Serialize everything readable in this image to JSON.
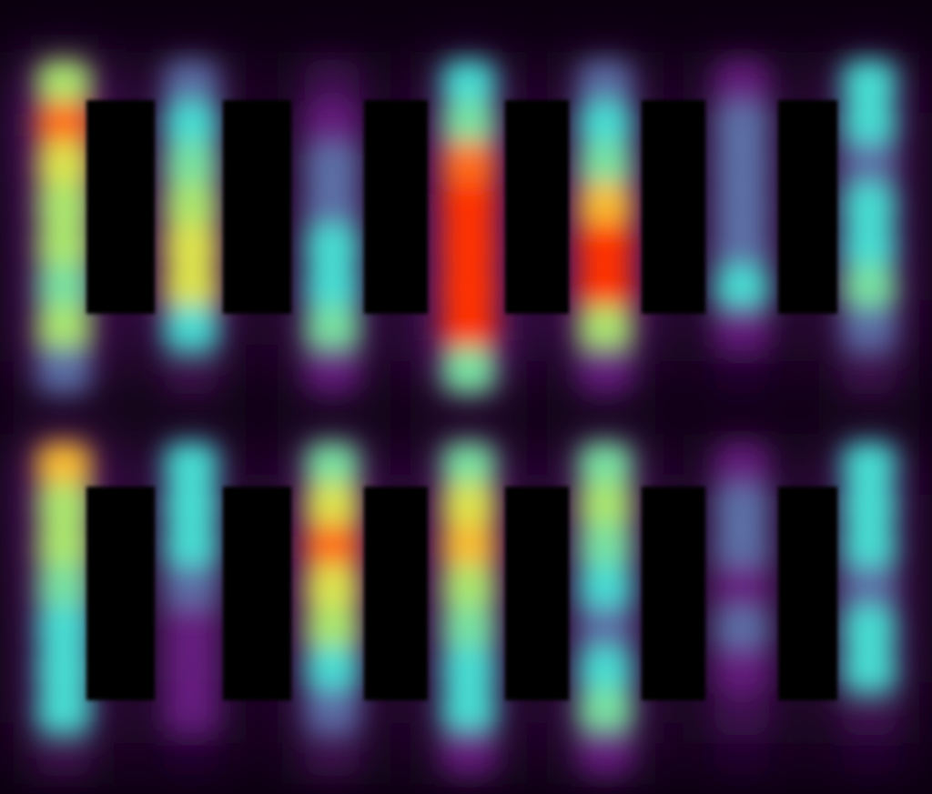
{
  "chart_data": {
    "type": "heatmap",
    "tick_labels": false,
    "zlim": [
      0,
      10
    ],
    "cells": [
      [
        6,
        3,
        1,
        4,
        3,
        2,
        4
      ],
      [
        9,
        4,
        2,
        5,
        4,
        3,
        4
      ],
      [
        7,
        5,
        3,
        9,
        5,
        3,
        3
      ],
      [
        6,
        6,
        3,
        10,
        8,
        3,
        4
      ],
      [
        6,
        7,
        4,
        10,
        10,
        3,
        4
      ],
      [
        5,
        7,
        4,
        10,
        10,
        4,
        5
      ],
      [
        6,
        4,
        5,
        10,
        6,
        2,
        3
      ],
      [
        3,
        1,
        2,
        5,
        2,
        0,
        1
      ],
      [
        8,
        4,
        5,
        5,
        5,
        2,
        4
      ],
      [
        6,
        4,
        7,
        7,
        6,
        3,
        4
      ],
      [
        6,
        4,
        9,
        8,
        5,
        3,
        4
      ],
      [
        5,
        3,
        7,
        6,
        4,
        2,
        3
      ],
      [
        4,
        2,
        6,
        5,
        3,
        3,
        4
      ],
      [
        4,
        2,
        4,
        4,
        4,
        2,
        4
      ],
      [
        4,
        2,
        3,
        4,
        5,
        1,
        1
      ],
      [
        1,
        0,
        1,
        2,
        2,
        0,
        0
      ]
    ]
  }
}
